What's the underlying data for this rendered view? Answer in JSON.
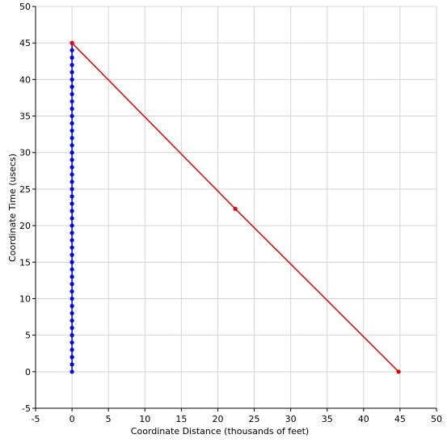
{
  "chart_data": {
    "type": "scatter",
    "xlabel": "Coordinate Distance (thousands of feet)",
    "ylabel": "Coordinate Time (usecs)",
    "xlim": [
      -5,
      50
    ],
    "ylim": [
      -5,
      50
    ],
    "xticks": [
      -5,
      0,
      5,
      10,
      15,
      20,
      25,
      30,
      35,
      40,
      45,
      50
    ],
    "yticks": [
      -5,
      0,
      5,
      10,
      15,
      20,
      25,
      30,
      35,
      40,
      45,
      50
    ],
    "tick_labels_x": [
      "-5",
      "0",
      "5",
      "10",
      "15",
      "20",
      "25",
      "30",
      "35",
      "40",
      "45",
      "50"
    ],
    "tick_labels_y": [
      "-5",
      "0",
      "5",
      "10",
      "15",
      "20",
      "25",
      "30",
      "35",
      "40",
      "45",
      "50"
    ],
    "grid": true,
    "series": [
      {
        "color": "#0000e6",
        "lines": true,
        "markers": true,
        "points": [
          [
            0,
            0
          ],
          [
            0,
            1
          ],
          [
            0,
            2
          ],
          [
            0,
            3
          ],
          [
            0,
            4
          ],
          [
            0,
            5
          ],
          [
            0,
            6
          ],
          [
            0,
            7
          ],
          [
            0,
            8
          ],
          [
            0,
            9
          ],
          [
            0,
            10
          ],
          [
            0,
            11
          ],
          [
            0,
            12
          ],
          [
            0,
            13
          ],
          [
            0,
            14
          ],
          [
            0,
            15
          ],
          [
            0,
            16
          ],
          [
            0,
            17
          ],
          [
            0,
            18
          ],
          [
            0,
            19
          ],
          [
            0,
            20
          ],
          [
            0,
            21
          ],
          [
            0,
            22
          ],
          [
            0,
            23
          ],
          [
            0,
            24
          ],
          [
            0,
            25
          ],
          [
            0,
            26
          ],
          [
            0,
            27
          ],
          [
            0,
            28
          ],
          [
            0,
            29
          ],
          [
            0,
            30
          ],
          [
            0,
            31
          ],
          [
            0,
            32
          ],
          [
            0,
            33
          ],
          [
            0,
            34
          ],
          [
            0,
            35
          ],
          [
            0,
            36
          ],
          [
            0,
            37
          ],
          [
            0,
            38
          ],
          [
            0,
            39
          ],
          [
            0,
            40
          ],
          [
            0,
            41
          ],
          [
            0,
            42
          ],
          [
            0,
            43
          ],
          [
            0,
            44
          ],
          [
            0,
            45
          ]
        ]
      },
      {
        "color": "#e60000",
        "lines": true,
        "markers": true,
        "points": [
          [
            0,
            45
          ],
          [
            22.4,
            22.3
          ],
          [
            44.8,
            0
          ]
        ]
      }
    ]
  }
}
